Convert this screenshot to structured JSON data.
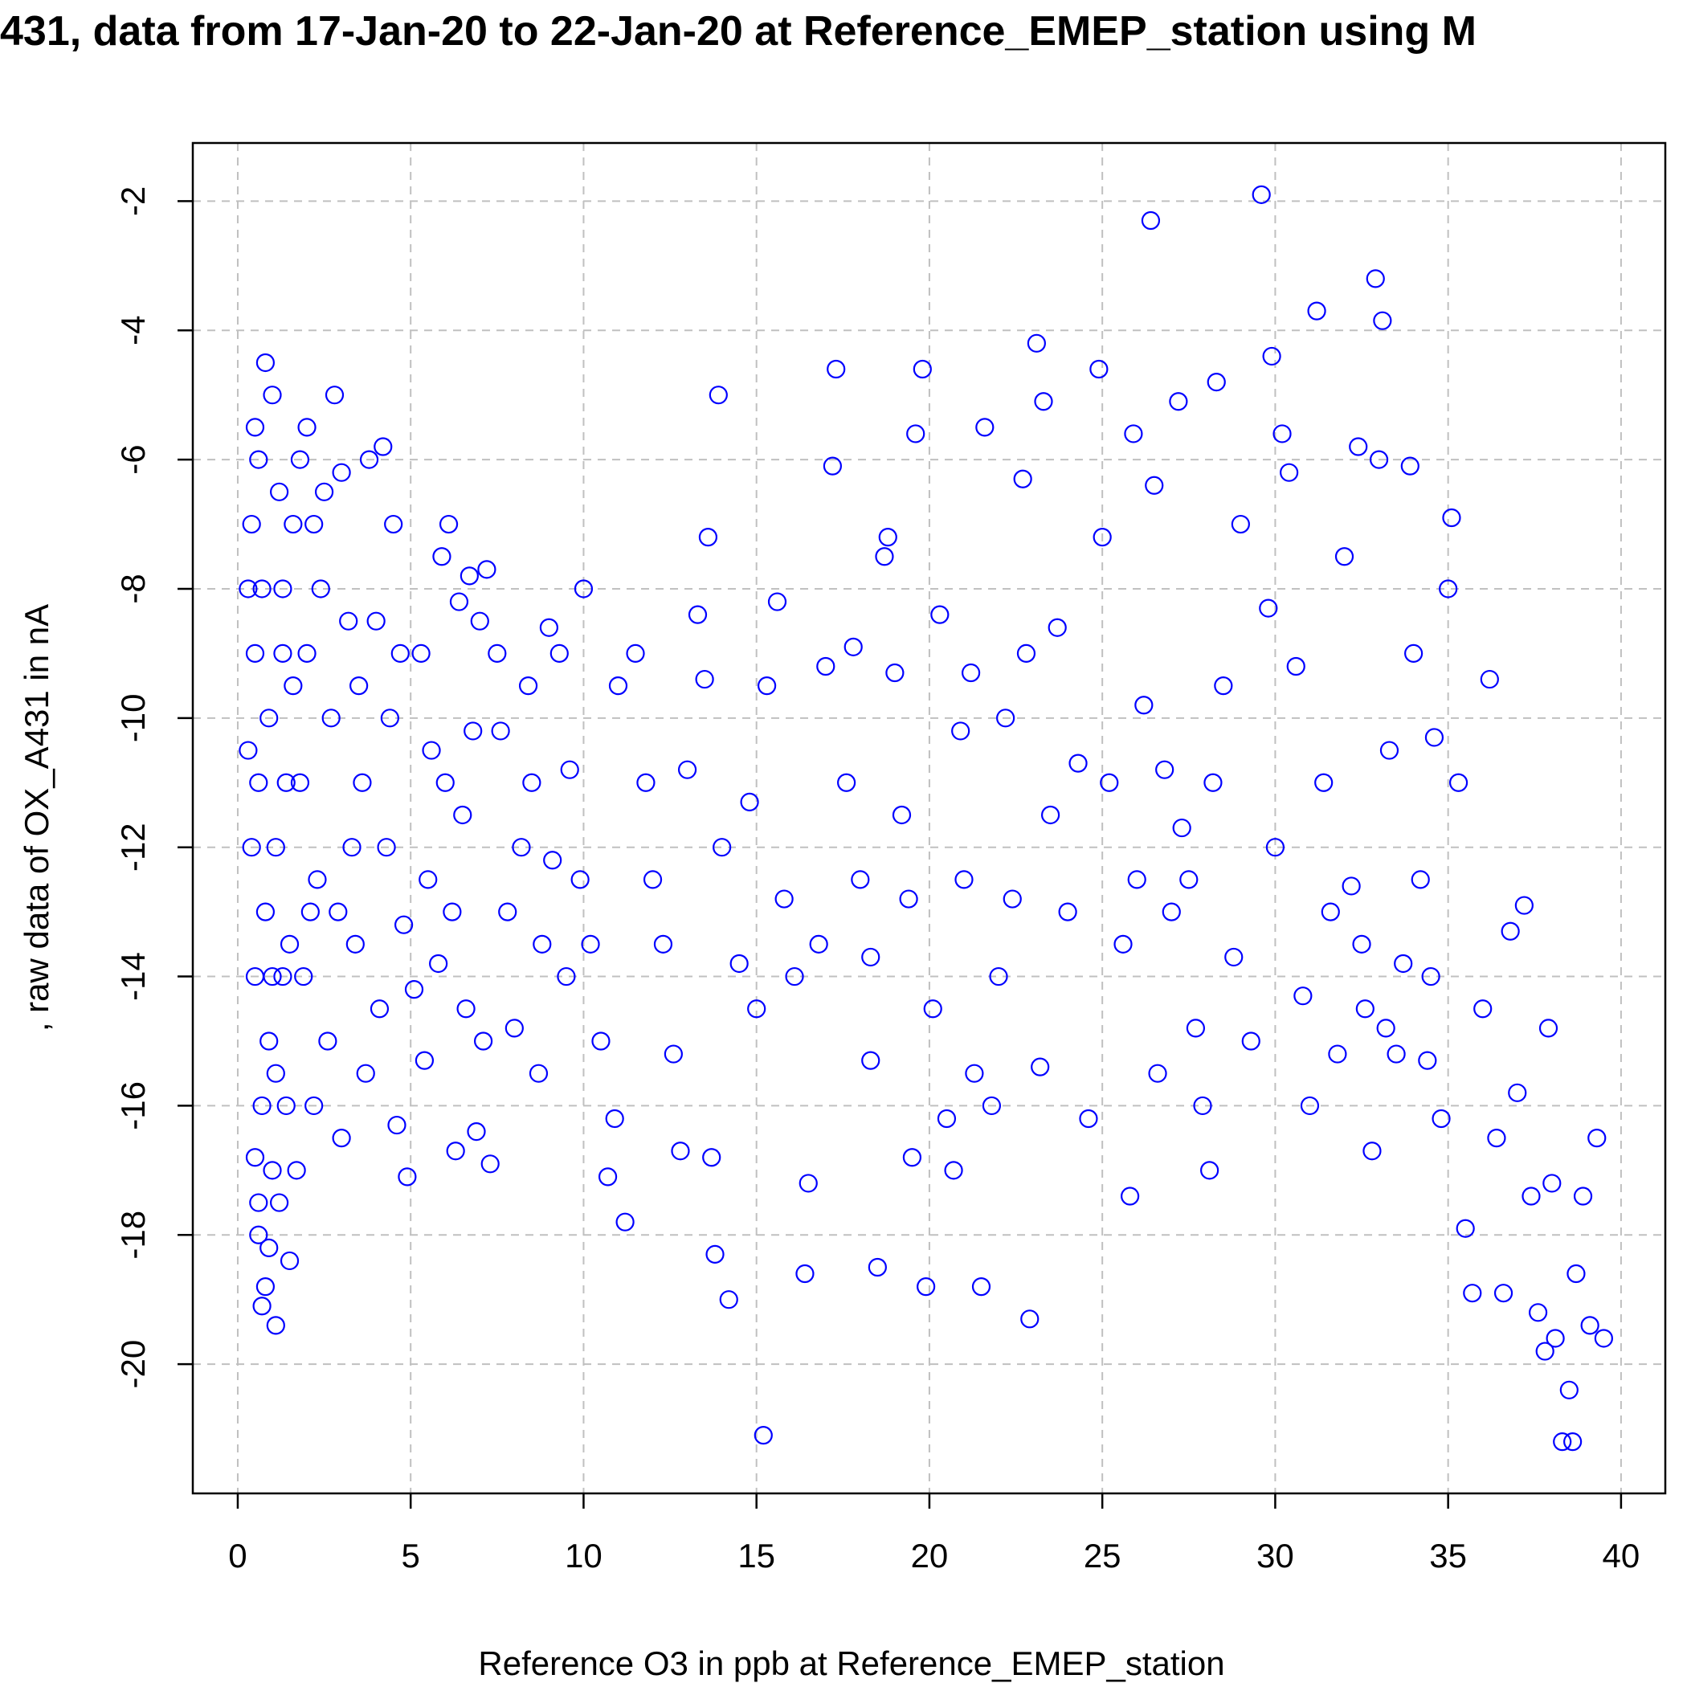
{
  "chart_data": {
    "type": "scatter",
    "title": "431, data from 17-Jan-20 to 22-Jan-20 at Reference_EMEP_station using M",
    "x_label": "Reference O3 in ppb at Reference_EMEP_station",
    "y_label": ", raw data of OX_A431 in nA",
    "color": "#0000ff",
    "grid": true,
    "xlim": [
      -1.3,
      41.28
    ],
    "ylim": [
      -22.0,
      -1.1
    ],
    "xticks": [
      0,
      5,
      10,
      15,
      20,
      25,
      30,
      35,
      40
    ],
    "yticks": [
      -20,
      -18,
      -16,
      -14,
      -12,
      -10,
      -8,
      -6,
      -4,
      -2
    ],
    "x": [
      0.5,
      0.8,
      0.6,
      1.0,
      0.4,
      0.7,
      1.2,
      0.5,
      0.9,
      0.6,
      1.3,
      0.4,
      0.8,
      1.1,
      0.5,
      0.9,
      1.3,
      0.7,
      1.0,
      1.4,
      0.6,
      0.9,
      0.7,
      1.1,
      0.8,
      1.5,
      1.2,
      0.3,
      0.3,
      1.6,
      1.8,
      2.0,
      2.2,
      2.5,
      2.8,
      3.0,
      2.4,
      2.0,
      2.7,
      1.8,
      2.3,
      2.9,
      1.9,
      2.6,
      2.2,
      1.7,
      3.2,
      3.5,
      3.8,
      4.2,
      4.5,
      4.0,
      3.6,
      4.3,
      3.4,
      4.1,
      3.7,
      3.0,
      4.6,
      4.9,
      4.4,
      4.7,
      4.8,
      3.3,
      2.1,
      1.5,
      1.4,
      1.3,
      1.6,
      1.0,
      1.1,
      0.5,
      0.6,
      5.3,
      5.6,
      5.9,
      6.1,
      6.4,
      6.7,
      7.0,
      7.2,
      7.5,
      6.8,
      6.0,
      6.5,
      5.5,
      6.2,
      5.8,
      6.6,
      7.1,
      5.4,
      6.3,
      7.3,
      6.9,
      5.1,
      7.8,
      8.2,
      8.5,
      8.8,
      9.1,
      9.5,
      8.0,
      8.7,
      9.3,
      9.6,
      10.0,
      9.9,
      10.2,
      10.5,
      8.4,
      7.6,
      9.0,
      10.7,
      10.9,
      11.2,
      11.0,
      11.5,
      11.8,
      12.0,
      12.3,
      12.6,
      12.8,
      13.0,
      13.3,
      13.6,
      13.9,
      13.5,
      13.7,
      13.8,
      14.2,
      14.0,
      14.5,
      14.8,
      15.2,
      15.0,
      15.3,
      15.6,
      15.8,
      16.1,
      16.4,
      16.5,
      16.8,
      17.2,
      17.3,
      17.0,
      17.6,
      17.8,
      18.0,
      18.3,
      18.5,
      18.3,
      18.7,
      19.0,
      19.2,
      19.4,
      19.6,
      19.8,
      19.5,
      19.9,
      20.1,
      20.3,
      20.5,
      20.7,
      18.8,
      20.9,
      21.2,
      21.0,
      21.3,
      21.6,
      21.5,
      21.8,
      22.0,
      22.2,
      22.4,
      22.7,
      22.9,
      22.8,
      23.1,
      23.3,
      23.2,
      23.5,
      23.7,
      24.0,
      24.3,
      24.6,
      24.9,
      25.0,
      25.2,
      25.6,
      25.9,
      25.8,
      26.0,
      26.2,
      26.4,
      26.5,
      26.6,
      26.8,
      27.0,
      27.2,
      27.3,
      27.5,
      27.7,
      27.9,
      28.1,
      28.3,
      28.5,
      28.2,
      28.8,
      29.0,
      29.3,
      29.6,
      29.8,
      29.9,
      30.0,
      30.2,
      30.4,
      30.6,
      30.8,
      31.0,
      31.2,
      31.4,
      31.6,
      31.8,
      32.0,
      32.2,
      32.4,
      32.6,
      32.8,
      32.9,
      33.1,
      33.0,
      33.3,
      33.5,
      33.7,
      33.9,
      34.0,
      34.2,
      34.4,
      34.6,
      34.8,
      35.0,
      35.1,
      35.3,
      35.5,
      35.7,
      36.0,
      36.2,
      36.4,
      36.6,
      36.8,
      37.0,
      37.2,
      37.4,
      37.6,
      37.8,
      37.9,
      38.1,
      38.3,
      38.5,
      38.6,
      38.7,
      38.9,
      39.1,
      39.3,
      39.5,
      38.0,
      34.5,
      33.2,
      32.5
    ],
    "values": [
      -5.5,
      -4.5,
      -6,
      -5,
      -7,
      -8,
      -6.5,
      -9,
      -10,
      -11,
      -9,
      -12,
      -13,
      -12,
      -14,
      -15,
      -14,
      -16,
      -17,
      -16,
      -18,
      -18.2,
      -19.1,
      -19.4,
      -18.8,
      -18.4,
      -17.5,
      -10.5,
      -8,
      -7,
      -6,
      -5.5,
      -7,
      -6.5,
      -5,
      -6.2,
      -8,
      -9,
      -10,
      -11,
      -12.5,
      -13,
      -14,
      -15,
      -16,
      -17,
      -8.5,
      -9.5,
      -6,
      -5.8,
      -7,
      -8.5,
      -11,
      -12,
      -13.5,
      -14.5,
      -15.5,
      -16.5,
      -16.3,
      -17.1,
      -10,
      -9,
      -13.2,
      -12,
      -13,
      -13.5,
      -11,
      -8,
      -9.5,
      -14,
      -15.5,
      -16.8,
      -17.5,
      -9,
      -10.5,
      -7.5,
      -7,
      -8.2,
      -7.8,
      -8.5,
      -7.7,
      -9,
      -10.2,
      -11,
      -11.5,
      -12.5,
      -13,
      -13.8,
      -14.5,
      -15,
      -15.3,
      -16.7,
      -16.9,
      -16.4,
      -14.2,
      -13,
      -12,
      -11,
      -13.5,
      -12.2,
      -14,
      -14.8,
      -15.5,
      -9,
      -10.8,
      -8,
      -12.5,
      -13.5,
      -15,
      -9.5,
      -10.2,
      -8.6,
      -17.1,
      -16.2,
      -17.8,
      -9.5,
      -9,
      -11,
      -12.5,
      -13.5,
      -15.2,
      -16.7,
      -10.8,
      -8.4,
      -7.2,
      -5,
      -9.4,
      -16.8,
      -18.3,
      -19,
      -12,
      -13.8,
      -11.3,
      -21.1,
      -14.5,
      -9.5,
      -8.2,
      -12.8,
      -14,
      -18.6,
      -17.2,
      -13.5,
      -6.1,
      -4.6,
      -9.2,
      -11,
      -8.9,
      -12.5,
      -13.7,
      -18.5,
      -15.3,
      -7.5,
      -9.3,
      -11.5,
      -12.8,
      -5.6,
      -4.6,
      -16.8,
      -18.8,
      -14.5,
      -8.4,
      -16.2,
      -17,
      -7.2,
      -10.2,
      -9.3,
      -12.5,
      -15.5,
      -5.5,
      -18.8,
      -16,
      -14,
      -10,
      -12.8,
      -6.3,
      -19.3,
      -9,
      -4.2,
      -5.1,
      -15.4,
      -11.5,
      -8.6,
      -13,
      -10.7,
      -16.2,
      -4.6,
      -7.2,
      -11,
      -13.5,
      -5.6,
      -17.4,
      -12.5,
      -9.8,
      -2.3,
      -6.4,
      -15.5,
      -10.8,
      -13,
      -5.1,
      -11.7,
      -12.5,
      -14.8,
      -16,
      -17,
      -4.8,
      -9.5,
      -11,
      -13.7,
      -7,
      -15,
      -1.9,
      -8.3,
      -4.4,
      -12,
      -5.6,
      -6.2,
      -9.2,
      -14.3,
      -16,
      -3.7,
      -11,
      -13,
      -15.2,
      -7.5,
      -12.6,
      -5.8,
      -14.5,
      -16.7,
      -3.2,
      -3.85,
      -6,
      -10.5,
      -15.2,
      -13.8,
      -6.1,
      -9,
      -12.5,
      -15.3,
      -10.3,
      -16.2,
      -8,
      -6.9,
      -11,
      -17.9,
      -18.9,
      -14.5,
      -9.4,
      -16.5,
      -18.9,
      -13.3,
      -15.8,
      -12.9,
      -17.4,
      -19.2,
      -19.8,
      -14.8,
      -19.6,
      -21.2,
      -20.4,
      -21.2,
      -18.6,
      -17.4,
      -19.4,
      -16.5,
      -19.6,
      -17.2,
      -14,
      -14.8,
      -13.5
    ]
  }
}
